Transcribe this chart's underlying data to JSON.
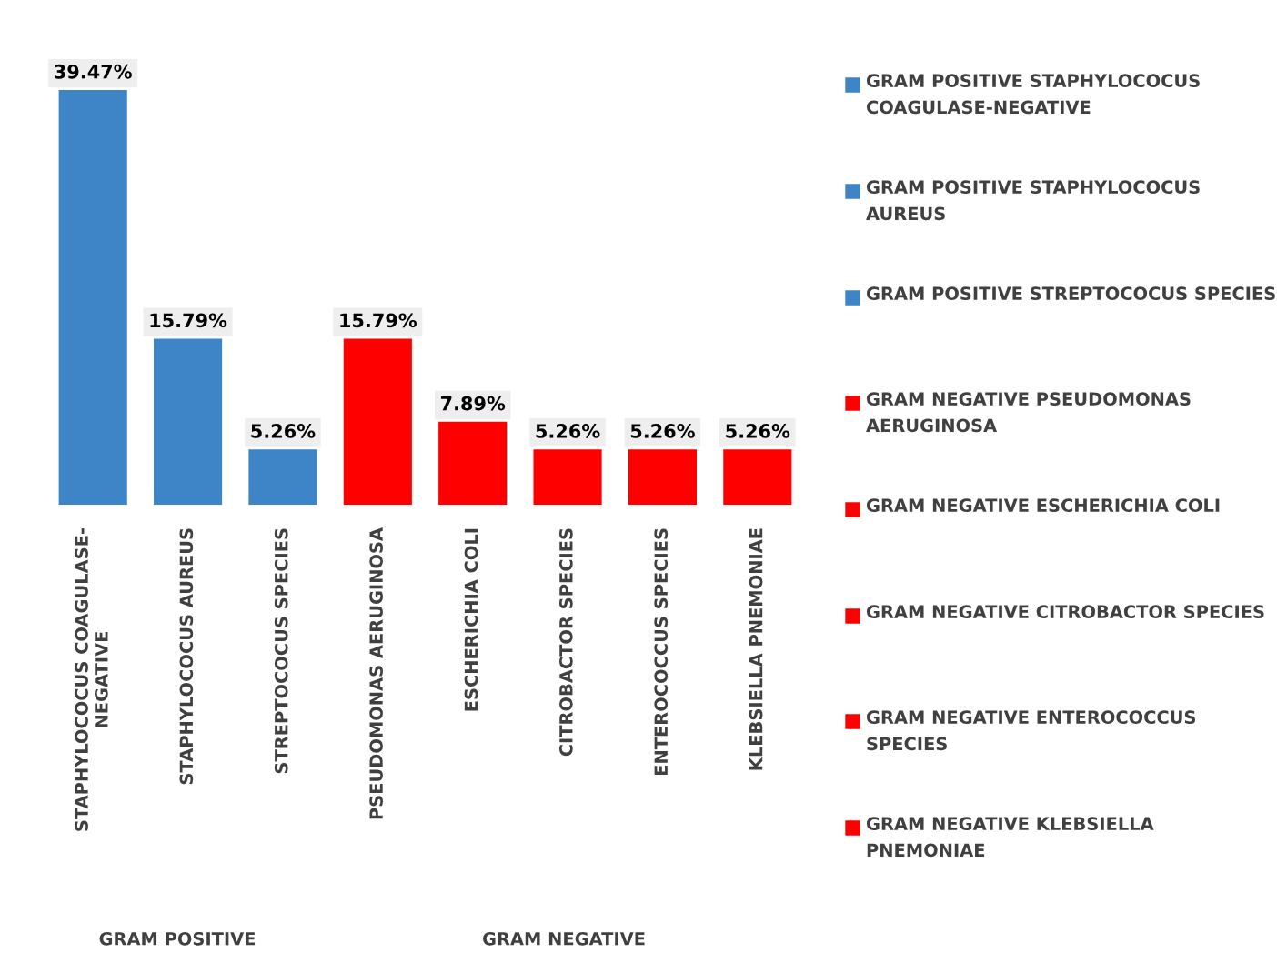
{
  "chart_data": {
    "type": "bar",
    "stacked": true,
    "legend": "right",
    "categories": [
      "STAPHYLOCOCUS COAGULASE-NEGATIVE",
      "STAPHYLOCOCUS AUREUS",
      "STREPTOCOCUS SPECIES",
      "PSEUDOMONAS AERUGINOSA",
      "ESCHERICHIA COLI",
      "CITROBACTOR SPECIES",
      "ENTEROCOCCUS SPECIES",
      "KLEBSIELLA PNEMONIAE"
    ],
    "series": [
      {
        "name": "GRAM POSITIVE STAPHYLOCOCUS COAGULASE-NEGATIVE",
        "color": "#3d85c6",
        "values": [
          39.47,
          null,
          null,
          null,
          null,
          null,
          null,
          null
        ],
        "value_labels": [
          "39.47%",
          null,
          null,
          null,
          null,
          null,
          null,
          null
        ]
      },
      {
        "name": "GRAM POSITIVE STAPHYLOCOCUS AUREUS",
        "color": "#3d85c6",
        "values": [
          null,
          15.79,
          null,
          null,
          null,
          null,
          null,
          null
        ],
        "value_labels": [
          null,
          "15.79%",
          null,
          null,
          null,
          null,
          null,
          null
        ]
      },
      {
        "name": "GRAM POSITIVE STREPTOCOCUS SPECIES",
        "color": "#3d85c6",
        "values": [
          null,
          null,
          5.26,
          null,
          null,
          null,
          null,
          null
        ],
        "value_labels": [
          null,
          null,
          "5.26%",
          null,
          null,
          null,
          null,
          null
        ]
      },
      {
        "name": "GRAM NEGATIVE PSEUDOMONAS AERUGINOSA",
        "color": "#ff0000",
        "values": [
          null,
          null,
          null,
          15.79,
          null,
          null,
          null,
          null
        ],
        "value_labels": [
          null,
          null,
          null,
          "15.79%",
          null,
          null,
          null,
          null
        ]
      },
      {
        "name": "GRAM NEGATIVE ESCHERICHIA COLI",
        "color": "#ff0000",
        "values": [
          null,
          null,
          null,
          null,
          7.89,
          null,
          null,
          null
        ],
        "value_labels": [
          null,
          null,
          null,
          null,
          "7.89%",
          null,
          null,
          null
        ]
      },
      {
        "name": "GRAM NEGATIVE CITROBACTOR SPECIES",
        "color": "#ff0000",
        "values": [
          null,
          null,
          null,
          null,
          null,
          5.26,
          null,
          null
        ],
        "value_labels": [
          null,
          null,
          null,
          null,
          null,
          "5.26%",
          null,
          null
        ]
      },
      {
        "name": "GRAM NEGATIVE ENTEROCOCCUS SPECIES",
        "color": "#ff0000",
        "values": [
          null,
          null,
          null,
          null,
          null,
          null,
          5.26,
          null
        ],
        "value_labels": [
          null,
          null,
          null,
          null,
          null,
          null,
          "5.26%",
          null
        ]
      },
      {
        "name": "GRAM NEGATIVE KLEBSIELLA PNEMONIAE",
        "color": "#ff0000",
        "values": [
          null,
          null,
          null,
          null,
          null,
          null,
          null,
          5.26
        ],
        "value_labels": [
          null,
          null,
          null,
          null,
          null,
          null,
          null,
          "5.26%"
        ]
      }
    ],
    "annotations": [
      "GRAM POSITIVE",
      "GRAM NEGATIVE"
    ]
  }
}
